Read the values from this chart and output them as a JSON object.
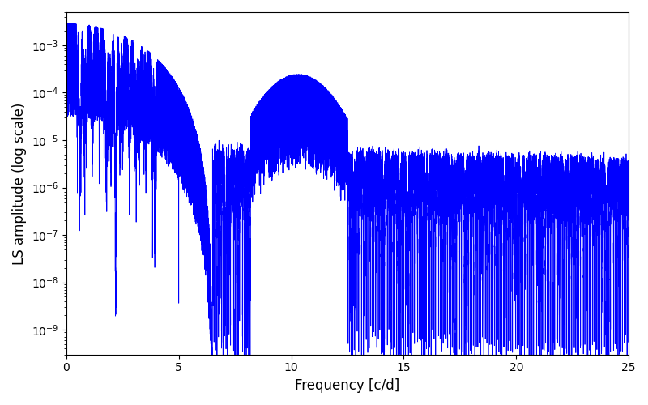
{
  "title": "",
  "xlabel": "Frequency [c/d]",
  "ylabel": "LS amplitude (log scale)",
  "xlim": [
    0,
    25
  ],
  "ylim_log": [
    3e-10,
    0.005
  ],
  "line_color": "#0000FF",
  "line_width": 0.6,
  "figsize": [
    8.0,
    5.0
  ],
  "dpi": 100,
  "freq_max": 25.0,
  "n_points": 80000,
  "background_color": "#ffffff"
}
